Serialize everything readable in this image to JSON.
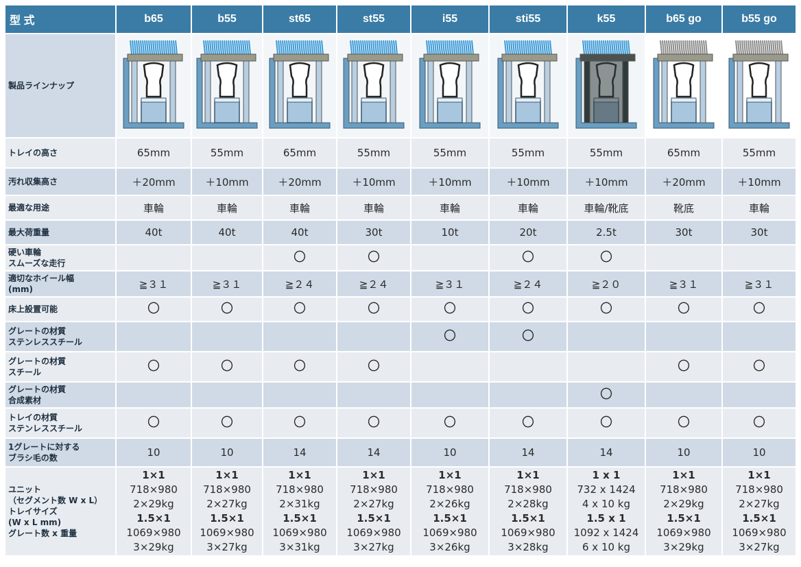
{
  "header": {
    "label": "型 式",
    "models": [
      "b65",
      "b55",
      "st65",
      "st55",
      "i55",
      "sti55",
      "k55",
      "b65 go",
      "b55 go"
    ]
  },
  "colors": {
    "header_bg": "#3a7ca5",
    "row_light": "#e8ecf1",
    "row_dark": "#d0dae6",
    "brush_blue": "#3c9bd6",
    "brush_gray": "#8a8a8a",
    "frame_gray": "#9a9a8a",
    "tray_blue": "#a9c6df",
    "grate_dark": "#2f3a3a"
  },
  "lineup": {
    "label": "製品ラインナップ",
    "images": [
      {
        "brush": "blue",
        "grate": "light",
        "icon": "product-b65-illustration"
      },
      {
        "brush": "blue",
        "grate": "light",
        "icon": "product-b55-illustration"
      },
      {
        "brush": "blue",
        "grate": "light",
        "icon": "product-st65-illustration"
      },
      {
        "brush": "blue",
        "grate": "light",
        "icon": "product-st55-illustration"
      },
      {
        "brush": "blue",
        "grate": "light",
        "icon": "product-i55-illustration"
      },
      {
        "brush": "blue",
        "grate": "light",
        "icon": "product-sti55-illustration"
      },
      {
        "brush": "blue",
        "grate": "dark",
        "icon": "product-k55-illustration"
      },
      {
        "brush": "gray",
        "grate": "light",
        "icon": "product-b65go-illustration"
      },
      {
        "brush": "gray",
        "grate": "light",
        "icon": "product-b55go-illustration"
      }
    ]
  },
  "rows": [
    {
      "label": [
        "トレイの高さ"
      ],
      "values": [
        "65mm",
        "55mm",
        "65mm",
        "55mm",
        "55mm",
        "55mm",
        "55mm",
        "65mm",
        "55mm"
      ],
      "shade": "a",
      "h": 44
    },
    {
      "label": [
        "汚れ収集高さ"
      ],
      "values": [
        "＋20mm",
        "＋10mm",
        "＋20mm",
        "＋10mm",
        "＋10mm",
        "＋10mm",
        "＋10mm",
        "＋20mm",
        "＋10mm"
      ],
      "shade": "b",
      "h": 40
    },
    {
      "label": [
        "最適な用途"
      ],
      "values": [
        "車輪",
        "車輪",
        "車輪",
        "車輪",
        "車輪",
        "車輪",
        "車輪/靴底",
        "靴底",
        "車輪"
      ],
      "shade": "a",
      "h": 36
    },
    {
      "label": [
        "最大荷重量"
      ],
      "values": [
        "40t",
        "40t",
        "40t",
        "30t",
        "10t",
        "20t",
        "2.5t",
        "30t",
        "30t"
      ],
      "shade": "b",
      "h": 36
    },
    {
      "label": [
        "硬い車輪",
        "スムーズな走行"
      ],
      "values": [
        "",
        "",
        "〇",
        "〇",
        "",
        "〇",
        "〇",
        "",
        ""
      ],
      "shade": "a",
      "h": 38
    },
    {
      "label": [
        "適切なホイール幅",
        "(mm)"
      ],
      "values": [
        "≧３１",
        "≧３１",
        "≧２４",
        "≧２４",
        "≧３１",
        "≧２４",
        "≧２０",
        "≧３１",
        "≧３１"
      ],
      "shade": "b",
      "h": 38
    },
    {
      "label": [
        "床上設置可能"
      ],
      "values": [
        "〇",
        "〇",
        "〇",
        "〇",
        "〇",
        "〇",
        "〇",
        "〇",
        "〇"
      ],
      "shade": "a",
      "h": 36
    },
    {
      "label": [
        "グレートの材質",
        "ステンレススチール"
      ],
      "values": [
        "",
        "",
        "",
        "",
        "〇",
        "〇",
        "",
        "",
        ""
      ],
      "shade": "b",
      "h": 44
    },
    {
      "label": [
        "グレートの材質",
        "スチール"
      ],
      "values": [
        "〇",
        "〇",
        "〇",
        "〇",
        "",
        "",
        "",
        "〇",
        "〇"
      ],
      "shade": "a",
      "h": 44
    },
    {
      "label": [
        "グレートの材質",
        "合成素材"
      ],
      "values": [
        "",
        "",
        "",
        "",
        "",
        "",
        "〇",
        "",
        ""
      ],
      "shade": "b",
      "h": 38
    },
    {
      "label": [
        "トレイの材質",
        "ステンレススチール"
      ],
      "values": [
        "〇",
        "〇",
        "〇",
        "〇",
        "〇",
        "〇",
        "〇",
        "〇",
        "〇"
      ],
      "shade": "a",
      "h": 44
    },
    {
      "label": [
        "1グレートに対する",
        "ブラシ毛の数"
      ],
      "values": [
        "10",
        "10",
        "14",
        "14",
        "10",
        "14",
        "14",
        "10",
        "10"
      ],
      "shade": "b",
      "h": 42
    }
  ],
  "unit_row": {
    "label": [
      "ユニット",
      "（セグメント数 W x L）",
      "トレイサイズ",
      "(W x L mm)",
      "グレート数 x 重量"
    ],
    "cells": [
      [
        "1×1",
        "718×980",
        "2×29kg",
        "1.5×1",
        "1069×980",
        "3×29kg"
      ],
      [
        "1×1",
        "718×980",
        "2×27kg",
        "1.5×1",
        "1069×980",
        "3×27kg"
      ],
      [
        "1×1",
        "718×980",
        "2×31kg",
        "1.5×1",
        "1069×980",
        "3×31kg"
      ],
      [
        "1×1",
        "718×980",
        "2×27kg",
        "1.5×1",
        "1069×980",
        "3×27kg"
      ],
      [
        "1×1",
        "718×980",
        "2×26kg",
        "1.5×1",
        "1069×980",
        "3×26kg"
      ],
      [
        "1×1",
        "718×980",
        "2×28kg",
        "1.5×1",
        "1069×980",
        "3×28kg"
      ],
      [
        "1 x 1",
        "732 x 1424",
        "4 x 10 kg",
        "1.5 x 1",
        "1092 x 1424",
        "6 x 10 kg"
      ],
      [
        "1×1",
        "718×980",
        "2×29kg",
        "1.5×1",
        "1069×980",
        "3×29kg"
      ],
      [
        "1×1",
        "718×980",
        "2×27kg",
        "1.5×1",
        "1069×980",
        "3×27kg"
      ]
    ]
  }
}
